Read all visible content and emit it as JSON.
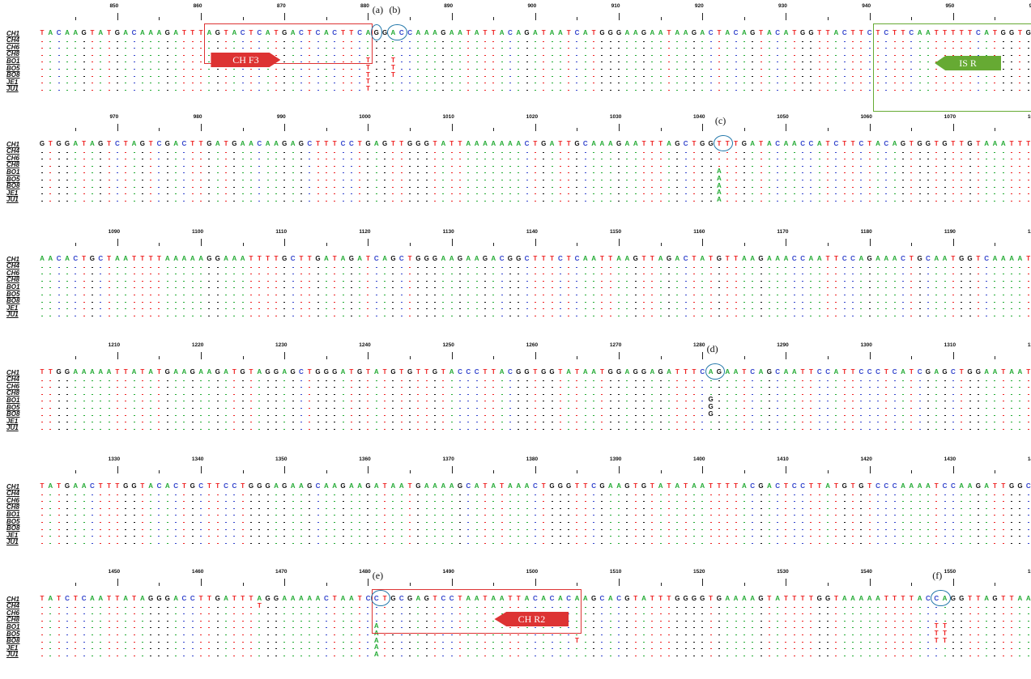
{
  "labels": [
    "CH1",
    "CH4",
    "CH6",
    "CH8",
    "BO1",
    "BO5",
    "BO8",
    "JE1",
    "JU1"
  ],
  "colors": {
    "A": "#22aa33",
    "C": "#3344cc",
    "G": "#111111",
    "T": "#ee2222"
  },
  "blocks": [
    {
      "start": 841,
      "ticks": [
        "850",
        "860",
        "870",
        "880",
        "890",
        "900",
        "910",
        "920",
        "930",
        "940",
        "950",
        "960"
      ],
      "seq": "TACAAGTATGACAAAGATTTAGTACTCATGACTCACTTCAGGACCAAAGAATATTACAGATAATCATGGGAAGAATAAGACTACAGTACATGGTTACTTCTCTTCAATTTTTCATGGTGGA",
      "variants": [
        {
          "row": 4,
          "pos": 880,
          "base": "T"
        },
        {
          "row": 4,
          "pos": 883,
          "base": "T"
        },
        {
          "row": 5,
          "pos": 880,
          "base": "T"
        },
        {
          "row": 5,
          "pos": 883,
          "base": "T"
        },
        {
          "row": 6,
          "pos": 880,
          "base": "T"
        },
        {
          "row": 6,
          "pos": 883,
          "base": "T"
        },
        {
          "row": 7,
          "pos": 880,
          "base": "T"
        },
        {
          "row": 8,
          "pos": 880,
          "base": "T"
        }
      ]
    },
    {
      "start": 961,
      "ticks": [
        "970",
        "980",
        "990",
        "1000",
        "1010",
        "1020",
        "1030",
        "1040",
        "1050",
        "1060",
        "1070",
        "1080"
      ],
      "seq": "GTGGATAGTCTAGTCGACTTGATGAACAAGAGCTTTCCTGAGTTGGGTATTAAAAAAACTGATTGCAAAGAATTTAGCTGGTTTGATACAACCATCTTCTACAGTGGTGTTGTAAATTTT",
      "variants": [
        {
          "row": 4,
          "pos": 1042,
          "base": "A"
        },
        {
          "row": 5,
          "pos": 1042,
          "base": "A"
        },
        {
          "row": 6,
          "pos": 1042,
          "base": "A"
        },
        {
          "row": 7,
          "pos": 1042,
          "base": "A"
        },
        {
          "row": 8,
          "pos": 1042,
          "base": "A"
        }
      ]
    },
    {
      "start": 1081,
      "ticks": [
        "1090",
        "1100",
        "1110",
        "1120",
        "1130",
        "1140",
        "1150",
        "1160",
        "1170",
        "1180",
        "1190",
        "1200"
      ],
      "seq": "AACACTGCTAATTTTAAAAAGGAAATTTTGCTTGATAGATCAGCTGGGAAGAAGACGGCTTTCTCAATTAAGTTAGACTATGTTAAGAAACCAATTCCAGAAACTGCAATGGTCAAAATT",
      "variants": []
    },
    {
      "start": 1201,
      "ticks": [
        "1210",
        "1220",
        "1230",
        "1240",
        "1250",
        "1260",
        "1270",
        "1280",
        "1290",
        "1300",
        "1310",
        "1320"
      ],
      "seq": "TTGGAAAAATTATATGAAGAAGATGTAGGAGCTGGGATGTATGTGTTGTACCCTTACGGTGGTATAATGGAGGAGATTTCAGAATCAGCAATTCCATTCCCTCATCGAGCTGGAATAATG",
      "variants": [
        {
          "row": 4,
          "pos": 1281,
          "base": "G"
        },
        {
          "row": 5,
          "pos": 1281,
          "base": "G"
        },
        {
          "row": 6,
          "pos": 1281,
          "base": "G"
        }
      ]
    },
    {
      "start": 1321,
      "ticks": [
        "1330",
        "1340",
        "1350",
        "1360",
        "1370",
        "1380",
        "1390",
        "1400",
        "1410",
        "1420",
        "1430",
        "1440"
      ],
      "seq": "TATGAACTTTGGTACACTGCTTCCTGGGAGAAGCAAGAAGATAATGAAAAGCATATAAACTGGGTTCGAAGTGTATATAATTTTACGACTCCTTATGTGTCCCAAAATCCAAGATTGGCG",
      "variants": []
    },
    {
      "start": 1441,
      "ticks": [
        "1450",
        "1460",
        "1470",
        "1480",
        "1490",
        "1500",
        "1510",
        "1520",
        "1530",
        "1540",
        "1550",
        "1560"
      ],
      "seq": "TATCTCAATTATAGGGACCTTGATTTAGGAAAAACTAATCCTGCGAGTCCTAATAATTACACACAAGCACGTATTTGGGGTGAAAAGTATTTTGGTAAAAATTTTACCAGGTTAGTTAAA",
      "variants": [
        {
          "row": 1,
          "pos": 1467,
          "base": "T"
        },
        {
          "row": 1,
          "pos": 1560,
          "base": "G"
        },
        {
          "row": 3,
          "pos": 1560,
          "base": "G"
        },
        {
          "row": 4,
          "pos": 1481,
          "base": "A"
        },
        {
          "row": 4,
          "pos": 1548,
          "base": "T"
        },
        {
          "row": 4,
          "pos": 1549,
          "base": "T"
        },
        {
          "row": 5,
          "pos": 1481,
          "base": "A"
        },
        {
          "row": 5,
          "pos": 1548,
          "base": "T"
        },
        {
          "row": 5,
          "pos": 1549,
          "base": "T"
        },
        {
          "row": 6,
          "pos": 1481,
          "base": "A"
        },
        {
          "row": 6,
          "pos": 1505,
          "base": "T"
        },
        {
          "row": 6,
          "pos": 1548,
          "base": "T"
        },
        {
          "row": 6,
          "pos": 1549,
          "base": "T"
        },
        {
          "row": 7,
          "pos": 1481,
          "base": "A"
        },
        {
          "row": 8,
          "pos": 1481,
          "base": "A"
        }
      ]
    }
  ],
  "markers": [
    {
      "label": "(a)",
      "block": 0,
      "positions": [
        881
      ]
    },
    {
      "label": "(b)",
      "block": 0,
      "positions": [
        883,
        884
      ]
    },
    {
      "label": "(c)",
      "block": 1,
      "positions": [
        1042,
        1043
      ]
    },
    {
      "label": "(d)",
      "block": 3,
      "positions": [
        1281,
        1282
      ]
    },
    {
      "label": "(e)",
      "block": 5,
      "positions": [
        1481,
        1482
      ]
    },
    {
      "label": "(f)",
      "block": 5,
      "positions": [
        1548,
        1549
      ]
    }
  ],
  "primers": [
    {
      "label": "CH F3",
      "color": "#dd3333",
      "arrow": "right",
      "block": 0,
      "from": 861,
      "to": 880
    },
    {
      "label": "IS R",
      "color": "#66aa33",
      "arrow": "left",
      "block": 0,
      "from": 941,
      "to": 960
    },
    {
      "label": "CH R2",
      "color": "#dd3333",
      "arrow": "left",
      "block": 5,
      "from": 1481,
      "to": 1505
    }
  ]
}
